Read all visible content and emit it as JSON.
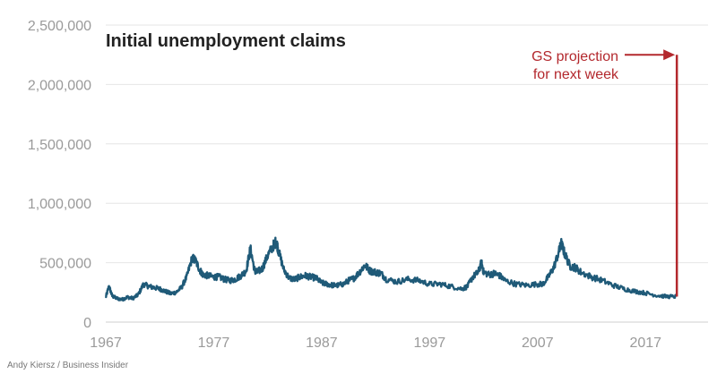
{
  "chart_data": {
    "type": "line",
    "title": "Initial unemployment claims",
    "xlabel": "",
    "ylabel": "",
    "xlim": [
      1967,
      2020.3
    ],
    "ylim": [
      0,
      2500000
    ],
    "grid": true,
    "y_ticks": [
      {
        "value": 0,
        "label": "0"
      },
      {
        "value": 500000,
        "label": "500,000"
      },
      {
        "value": 1000000,
        "label": "1,000,000"
      },
      {
        "value": 1500000,
        "label": "1,500,000"
      },
      {
        "value": 2000000,
        "label": "2,000,000"
      },
      {
        "value": 2500000,
        "label": "2,500,000"
      }
    ],
    "x_ticks": [
      {
        "value": 1967,
        "label": "1967"
      },
      {
        "value": 1977,
        "label": "1977"
      },
      {
        "value": 1987,
        "label": "1987"
      },
      {
        "value": 1997,
        "label": "1997"
      },
      {
        "value": 2007,
        "label": "2007"
      },
      {
        "value": 2017,
        "label": "2017"
      }
    ],
    "series": [
      {
        "name": "Initial unemployment claims",
        "color": "#1f5a78",
        "points": [
          [
            1967.0,
            210000
          ],
          [
            1967.3,
            300000
          ],
          [
            1967.6,
            220000
          ],
          [
            1968.0,
            200000
          ],
          [
            1968.5,
            190000
          ],
          [
            1969.0,
            210000
          ],
          [
            1969.5,
            200000
          ],
          [
            1970.0,
            230000
          ],
          [
            1970.5,
            320000
          ],
          [
            1971.0,
            300000
          ],
          [
            1971.5,
            290000
          ],
          [
            1972.0,
            280000
          ],
          [
            1972.5,
            260000
          ],
          [
            1973.0,
            240000
          ],
          [
            1973.5,
            250000
          ],
          [
            1974.0,
            290000
          ],
          [
            1974.5,
            380000
          ],
          [
            1975.0,
            540000
          ],
          [
            1975.3,
            520000
          ],
          [
            1975.7,
            440000
          ],
          [
            1976.0,
            400000
          ],
          [
            1976.5,
            390000
          ],
          [
            1977.0,
            380000
          ],
          [
            1977.5,
            380000
          ],
          [
            1978.0,
            360000
          ],
          [
            1978.5,
            350000
          ],
          [
            1979.0,
            360000
          ],
          [
            1979.5,
            390000
          ],
          [
            1980.0,
            430000
          ],
          [
            1980.4,
            620000
          ],
          [
            1980.8,
            430000
          ],
          [
            1981.0,
            420000
          ],
          [
            1981.5,
            450000
          ],
          [
            1982.0,
            560000
          ],
          [
            1982.5,
            640000
          ],
          [
            1982.8,
            680000
          ],
          [
            1983.0,
            600000
          ],
          [
            1983.5,
            440000
          ],
          [
            1984.0,
            370000
          ],
          [
            1984.5,
            360000
          ],
          [
            1985.0,
            380000
          ],
          [
            1985.5,
            390000
          ],
          [
            1986.0,
            380000
          ],
          [
            1986.5,
            370000
          ],
          [
            1987.0,
            330000
          ],
          [
            1987.5,
            320000
          ],
          [
            1988.0,
            310000
          ],
          [
            1988.5,
            310000
          ],
          [
            1989.0,
            320000
          ],
          [
            1989.5,
            350000
          ],
          [
            1990.0,
            370000
          ],
          [
            1990.5,
            420000
          ],
          [
            1991.0,
            480000
          ],
          [
            1991.5,
            430000
          ],
          [
            1992.0,
            420000
          ],
          [
            1992.5,
            410000
          ],
          [
            1993.0,
            360000
          ],
          [
            1994.0,
            340000
          ],
          [
            1995.0,
            360000
          ],
          [
            1996.0,
            350000
          ],
          [
            1997.0,
            320000
          ],
          [
            1998.0,
            320000
          ],
          [
            1999.0,
            300000
          ],
          [
            2000.0,
            280000
          ],
          [
            2000.5,
            300000
          ],
          [
            2001.0,
            380000
          ],
          [
            2001.5,
            420000
          ],
          [
            2001.8,
            500000
          ],
          [
            2002.0,
            420000
          ],
          [
            2002.5,
            400000
          ],
          [
            2003.0,
            410000
          ],
          [
            2003.5,
            390000
          ],
          [
            2004.0,
            350000
          ],
          [
            2005.0,
            320000
          ],
          [
            2006.0,
            310000
          ],
          [
            2007.0,
            320000
          ],
          [
            2007.5,
            320000
          ],
          [
            2008.0,
            380000
          ],
          [
            2008.5,
            460000
          ],
          [
            2009.0,
            600000
          ],
          [
            2009.2,
            660000
          ],
          [
            2009.5,
            580000
          ],
          [
            2010.0,
            470000
          ],
          [
            2010.5,
            460000
          ],
          [
            2011.0,
            420000
          ],
          [
            2012.0,
            380000
          ],
          [
            2013.0,
            350000
          ],
          [
            2014.0,
            310000
          ],
          [
            2015.0,
            280000
          ],
          [
            2016.0,
            260000
          ],
          [
            2017.0,
            245000
          ],
          [
            2018.0,
            225000
          ],
          [
            2019.0,
            215000
          ],
          [
            2019.9,
            215000
          ]
        ]
      }
    ],
    "annotation": {
      "text_line1": "GS projection",
      "text_line2": "for next week",
      "color": "#b3282d",
      "target_year": 2019.9,
      "target_value": 2250000
    }
  },
  "credit": "Andy Kiersz / Business Insider"
}
